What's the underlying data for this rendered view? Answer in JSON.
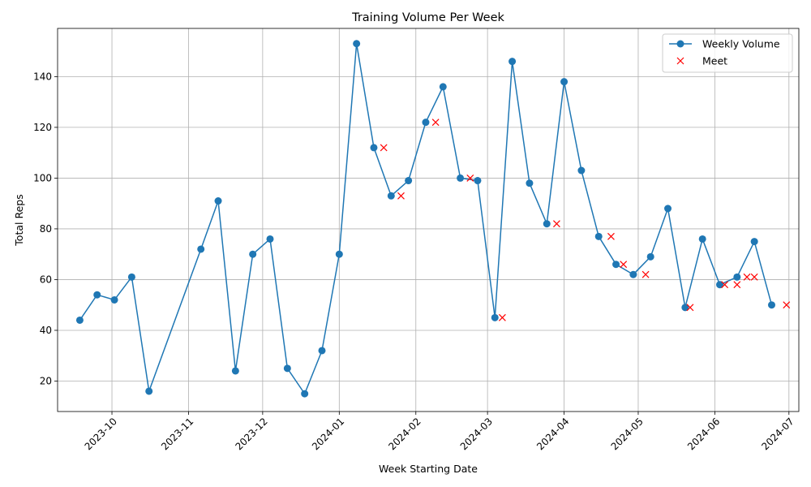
{
  "chart_data": {
    "type": "line",
    "title": "Training Volume Per Week",
    "xlabel": "Week Starting Date",
    "ylabel": "Total Reps",
    "xlim": [
      "2023-09-09",
      "2024-07-05"
    ],
    "ylim": [
      8,
      159
    ],
    "x_ticks": [
      "2023-10-01",
      "2023-11-01",
      "2023-12-01",
      "2024-01-01",
      "2024-02-01",
      "2024-03-01",
      "2024-04-01",
      "2024-05-01",
      "2024-06-01",
      "2024-07-01"
    ],
    "x_tick_labels": [
      "2023-10",
      "2023-11",
      "2023-12",
      "2024-01",
      "2024-02",
      "2024-03",
      "2024-04",
      "2024-05",
      "2024-06",
      "2024-07"
    ],
    "y_ticks": [
      20,
      40,
      60,
      80,
      100,
      120,
      140
    ],
    "grid": true,
    "legend_position": "top-right",
    "colors": {
      "line": "#1f77b4",
      "meet": "#ff0000",
      "grid": "#b0b0b0"
    },
    "series": [
      {
        "name": "Weekly Volume",
        "style": "line-with-circle-markers",
        "points": [
          [
            "2023-09-18",
            44
          ],
          [
            "2023-09-25",
            54
          ],
          [
            "2023-10-02",
            52
          ],
          [
            "2023-10-09",
            61
          ],
          [
            "2023-10-16",
            16
          ],
          [
            "2023-11-06",
            72
          ],
          [
            "2023-11-13",
            91
          ],
          [
            "2023-11-20",
            24
          ],
          [
            "2023-11-27",
            70
          ],
          [
            "2023-12-04",
            76
          ],
          [
            "2023-12-11",
            25
          ],
          [
            "2023-12-18",
            15
          ],
          [
            "2023-12-25",
            32
          ],
          [
            "2024-01-01",
            70
          ],
          [
            "2024-01-08",
            153
          ],
          [
            "2024-01-15",
            112
          ],
          [
            "2024-01-22",
            93
          ],
          [
            "2024-01-29",
            99
          ],
          [
            "2024-02-05",
            122
          ],
          [
            "2024-02-12",
            136
          ],
          [
            "2024-02-19",
            100
          ],
          [
            "2024-02-26",
            99
          ],
          [
            "2024-03-04",
            45
          ],
          [
            "2024-03-11",
            146
          ],
          [
            "2024-03-18",
            98
          ],
          [
            "2024-03-25",
            82
          ],
          [
            "2024-04-01",
            138
          ],
          [
            "2024-04-08",
            103
          ],
          [
            "2024-04-15",
            77
          ],
          [
            "2024-04-22",
            66
          ],
          [
            "2024-04-29",
            62
          ],
          [
            "2024-05-06",
            69
          ],
          [
            "2024-05-13",
            88
          ],
          [
            "2024-05-20",
            49
          ],
          [
            "2024-05-27",
            76
          ],
          [
            "2024-06-03",
            58
          ],
          [
            "2024-06-10",
            61
          ],
          [
            "2024-06-17",
            75
          ],
          [
            "2024-06-24",
            50
          ]
        ]
      },
      {
        "name": "Meet",
        "style": "x-markers",
        "points": [
          [
            "2024-01-19",
            112
          ],
          [
            "2024-01-26",
            93
          ],
          [
            "2024-02-09",
            122
          ],
          [
            "2024-02-23",
            100
          ],
          [
            "2024-03-07",
            45
          ],
          [
            "2024-03-29",
            82
          ],
          [
            "2024-04-20",
            77
          ],
          [
            "2024-04-25",
            66
          ],
          [
            "2024-05-04",
            62
          ],
          [
            "2024-05-22",
            49
          ],
          [
            "2024-06-05",
            58
          ],
          [
            "2024-06-10",
            58
          ],
          [
            "2024-06-14",
            61
          ],
          [
            "2024-06-17",
            61
          ],
          [
            "2024-06-30",
            50
          ]
        ]
      }
    ]
  }
}
